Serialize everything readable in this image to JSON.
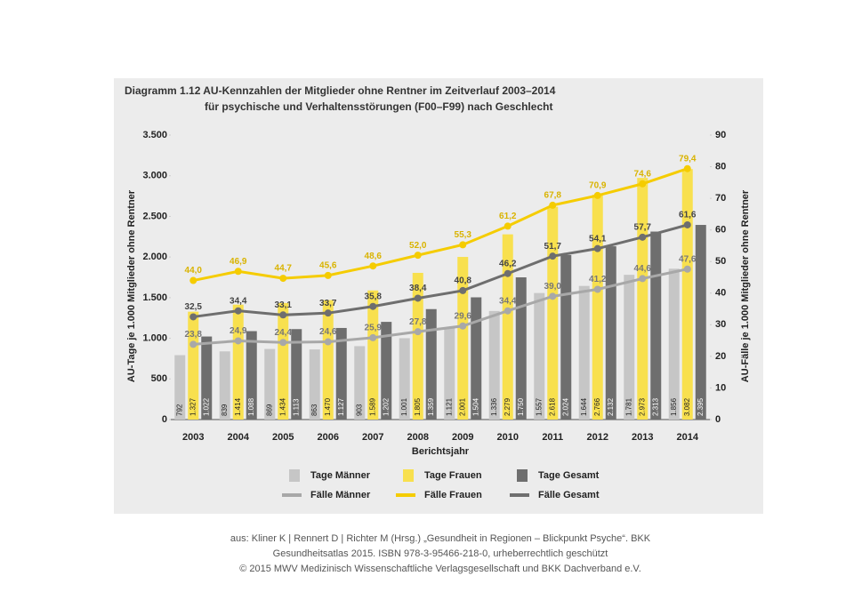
{
  "chart_data": {
    "type": "bar",
    "title": "Diagramm 1.12  AU-Kennzahlen der Mitglieder ohne Rentner im Zeitverlauf 2003–2014",
    "subtitle": "für psychische und Verhaltensstörungen (F00–F99) nach Geschlecht",
    "x_label": "Berichtsjahr",
    "y_label": "AU-Tage je 1.000 Mitglieder ohne Rentner",
    "y2_label": "AU-Fälle je 1.000 Mitglieder ohne Rentner",
    "categories": [
      "2003",
      "2004",
      "2005",
      "2006",
      "2007",
      "2008",
      "2009",
      "2010",
      "2011",
      "2012",
      "2013",
      "2014"
    ],
    "ylim": [
      0,
      3500
    ],
    "yticks": [
      0,
      500,
      {
        "value": 1000,
        "label": "1.000"
      },
      {
        "value": 1500,
        "label": "1.500"
      },
      {
        "value": 2000,
        "label": "2.000"
      },
      {
        "value": 2500,
        "label": "2.500"
      },
      {
        "value": 3000,
        "label": "3.000"
      },
      {
        "value": 3500,
        "label": "3.500"
      }
    ],
    "y2lim": [
      0,
      90
    ],
    "y2ticks": [
      0,
      10,
      20,
      30,
      40,
      50,
      60,
      70,
      80,
      90
    ],
    "series": [
      {
        "name": "Tage Männer",
        "type": "bar",
        "color": "#c6c6c6",
        "values": [
          792,
          839,
          869,
          863,
          903,
          1001,
          1121,
          1336,
          1557,
          1644,
          1781,
          1856
        ],
        "value_labels": [
          "792",
          "839",
          "869",
          "863",
          "903",
          "1.001",
          "1.121",
          "1.336",
          "1.557",
          "1.644",
          "1.781",
          "1.856"
        ]
      },
      {
        "name": "Tage Frauen",
        "type": "bar",
        "color": "#f8e04e",
        "values": [
          1327,
          1414,
          1434,
          1470,
          1589,
          1805,
          2001,
          2279,
          2618,
          2766,
          2973,
          3082
        ],
        "value_labels": [
          "1.327",
          "1.414",
          "1.434",
          "1.470",
          "1.589",
          "1.805",
          "2.001",
          "2.279",
          "2.618",
          "2.766",
          "2.973",
          "3.082"
        ]
      },
      {
        "name": "Tage Gesamt",
        "type": "bar",
        "color": "#6e6e6e",
        "values": [
          1022,
          1088,
          1113,
          1127,
          1202,
          1359,
          1504,
          1750,
          2024,
          2132,
          2313,
          2395
        ],
        "value_labels": [
          "1.022",
          "1.088",
          "1.113",
          "1.127",
          "1.202",
          "1.359",
          "1.504",
          "1.750",
          "2.024",
          "2.132",
          "2.313",
          "2.395"
        ]
      },
      {
        "name": "Fälle Männer",
        "type": "line",
        "axis": "y2",
        "color": "#a8a8a8",
        "values": [
          23.8,
          24.9,
          24.4,
          24.6,
          25.9,
          27.8,
          29.6,
          34.4,
          39.0,
          41.2,
          44.6,
          47.6
        ],
        "value_labels": [
          "23,8",
          "24,9",
          "24,4",
          "24,6",
          "25,9",
          "27,8",
          "29,6",
          "34,4",
          "39,0",
          "41,2",
          "44,6",
          "47,6"
        ]
      },
      {
        "name": "Fälle Frauen",
        "type": "line",
        "axis": "y2",
        "color": "#f5cc00",
        "values": [
          44.0,
          46.9,
          44.7,
          45.6,
          48.6,
          52.0,
          55.3,
          61.2,
          67.8,
          70.9,
          74.6,
          79.4
        ],
        "value_labels": [
          "44,0",
          "46,9",
          "44,7",
          "45,6",
          "48,6",
          "52,0",
          "55,3",
          "61,2",
          "67,8",
          "70,9",
          "74,6",
          "79,4"
        ]
      },
      {
        "name": "Fälle Gesamt",
        "type": "line",
        "axis": "y2",
        "color": "#6e6e6e",
        "values": [
          32.5,
          34.4,
          33.1,
          33.7,
          35.8,
          38.4,
          40.8,
          46.2,
          51.7,
          54.1,
          57.7,
          61.6
        ],
        "value_labels": [
          "32,5",
          "34,4",
          "33,1",
          "33,7",
          "35,8",
          "38,4",
          "40,8",
          "46,2",
          "51,7",
          "54,1",
          "57,7",
          "61,6"
        ]
      }
    ]
  },
  "source": [
    "aus: Kliner K | Rennert D | Richter M (Hrsg.) „Gesundheit in Regionen – Blickpunkt Psyche“. BKK",
    "Gesundheitsatlas 2015. ISBN 978-3-95466-218-0, urheberrechtlich geschützt",
    "© 2015 MWV Medizinisch Wissenschaftliche Verlagsgesellschaft und BKK Dachverband e.V."
  ]
}
